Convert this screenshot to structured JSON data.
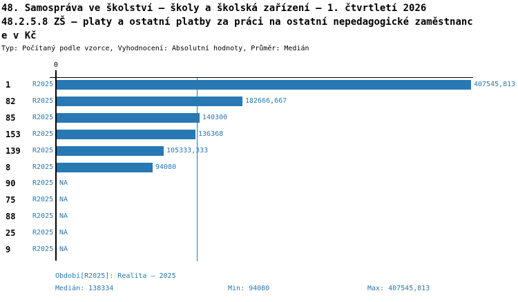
{
  "header": {
    "title_line1": "48. Samospráva ve školství – školy a školská zařízení – 1. čtvrtletí 2026",
    "title_line2": "48.2.5.8 ZŠ – platy a ostatní platby za práci na ostatní nepedagogické zaměstnanc",
    "title_line3": "e v Kč",
    "meta_line": "Typ: Počítaný podle vzorce, Vyhodnocení: Absolutní hodnoty, Průměr: Medián"
  },
  "chart_data": {
    "type": "bar",
    "orientation": "horizontal",
    "value_axis_position": "top",
    "axis_tick_label": "0",
    "x_max": 407545.813,
    "median_line_value": 138334,
    "series_name": "R2025",
    "rows": [
      {
        "id": "1",
        "period": "R2025",
        "value": 407545.813,
        "label": "407545,813"
      },
      {
        "id": "82",
        "period": "R2025",
        "value": 182666.667,
        "label": "182666,667"
      },
      {
        "id": "85",
        "period": "R2025",
        "value": 140300,
        "label": "140300"
      },
      {
        "id": "153",
        "period": "R2025",
        "value": 136368,
        "label": "136368"
      },
      {
        "id": "139",
        "period": "R2025",
        "value": 105333.333,
        "label": "105333,333"
      },
      {
        "id": "8",
        "period": "R2025",
        "value": 94080,
        "label": "94080"
      },
      {
        "id": "90",
        "period": "R2025",
        "value": null,
        "label": "NA"
      },
      {
        "id": "75",
        "period": "R2025",
        "value": null,
        "label": "NA"
      },
      {
        "id": "88",
        "period": "R2025",
        "value": null,
        "label": "NA"
      },
      {
        "id": "25",
        "period": "R2025",
        "value": null,
        "label": "NA"
      },
      {
        "id": "9",
        "period": "R2025",
        "value": null,
        "label": "NA"
      }
    ],
    "stats": {
      "median": 138334,
      "min": 94080,
      "max": 407545.813
    },
    "colors": {
      "accent": "#2878b4",
      "axis": "#000000",
      "background": "#ffffff"
    }
  },
  "footer": {
    "period_line": "Období[R2025]: Realita – 2025",
    "median": "Medián: 138334",
    "min": "Min: 94080",
    "max": "Max: 407545,813"
  }
}
